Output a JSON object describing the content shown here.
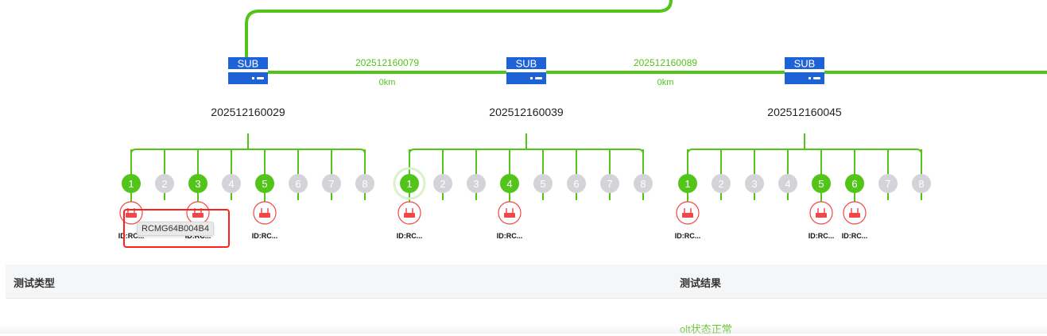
{
  "colors": {
    "link": "#52c41a",
    "sub": "#1e62d8",
    "port_active": "#52c41a",
    "port_idle": "#d3d3d8",
    "ont": "#f04848",
    "highlight": "#ff1f1f"
  },
  "subs": [
    {
      "badge": "SUB",
      "name": "202512160029",
      "ports": [
        "1",
        "2",
        "3",
        "4",
        "5",
        "6",
        "7",
        "8"
      ],
      "active": [
        "1",
        "3",
        "5"
      ],
      "onts": [
        {
          "port": "1",
          "label": "ID:RC..."
        },
        {
          "port": "3",
          "label": "ID:RC..."
        },
        {
          "port": "5",
          "label": "ID:RC..."
        }
      ]
    },
    {
      "badge": "SUB",
      "name": "202512160039",
      "ports": [
        "1",
        "2",
        "3",
        "4",
        "5",
        "6",
        "7",
        "8"
      ],
      "active": [
        "1",
        "4"
      ],
      "selected": "1",
      "onts": [
        {
          "port": "1",
          "label": "ID:RC..."
        },
        {
          "port": "4",
          "label": "ID:RC..."
        }
      ]
    },
    {
      "badge": "SUB",
      "name": "202512160045",
      "ports": [
        "1",
        "2",
        "3",
        "4",
        "5",
        "6",
        "7",
        "8"
      ],
      "active": [
        "1",
        "5",
        "6"
      ],
      "onts": [
        {
          "port": "1",
          "label": "ID:RC..."
        },
        {
          "port": "5",
          "label": "ID:RC..."
        },
        {
          "port": "6",
          "label": "ID:RC..."
        }
      ]
    }
  ],
  "links": [
    {
      "name": "202512160079",
      "distance": "0km"
    },
    {
      "name": "202512160089",
      "distance": "0km"
    }
  ],
  "tooltip": "RCMG64B004B4",
  "table": {
    "headers": [
      "测试类型",
      "测试结果"
    ],
    "rows": [
      {
        "type": "",
        "result": "olt状态正常"
      }
    ]
  }
}
